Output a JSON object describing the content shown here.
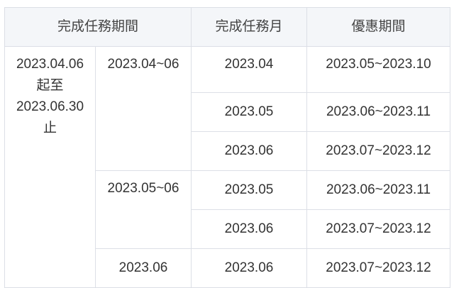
{
  "headers": [
    "完成任務期間",
    "完成任務月",
    "優惠期間"
  ],
  "period": {
    "line1": "2023.04.06",
    "line2": "起至",
    "line3": "2023.06.30",
    "line4": "止"
  },
  "groups": [
    "2023.04~06",
    "2023.05~06",
    "2023.06"
  ],
  "rows": [
    {
      "month": "2023.04",
      "discount": "2023.05~2023.10"
    },
    {
      "month": "2023.05",
      "discount": "2023.06~2023.11"
    },
    {
      "month": "2023.06",
      "discount": "2023.07~2023.12"
    },
    {
      "month": "2023.05",
      "discount": "2023.06~2023.11"
    },
    {
      "month": "2023.06",
      "discount": "2023.07~2023.12"
    },
    {
      "month": "2023.06",
      "discount": "2023.07~2023.12"
    }
  ]
}
